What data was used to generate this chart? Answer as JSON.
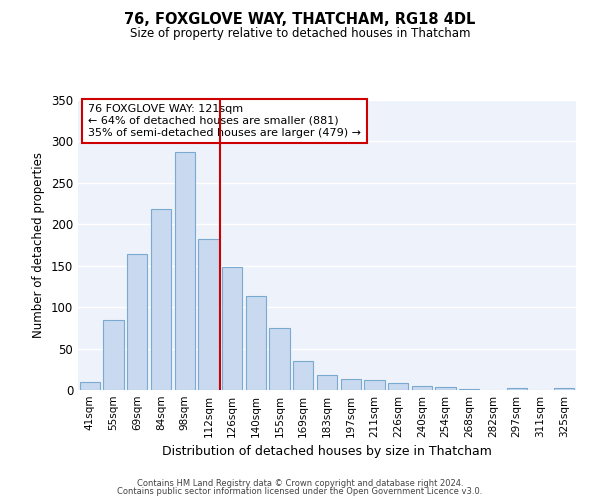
{
  "title": "76, FOXGLOVE WAY, THATCHAM, RG18 4DL",
  "subtitle": "Size of property relative to detached houses in Thatcham",
  "xlabel": "Distribution of detached houses by size in Thatcham",
  "ylabel": "Number of detached properties",
  "bar_labels": [
    "41sqm",
    "55sqm",
    "69sqm",
    "84sqm",
    "98sqm",
    "112sqm",
    "126sqm",
    "140sqm",
    "155sqm",
    "169sqm",
    "183sqm",
    "197sqm",
    "211sqm",
    "226sqm",
    "240sqm",
    "254sqm",
    "268sqm",
    "282sqm",
    "297sqm",
    "311sqm",
    "325sqm"
  ],
  "bar_values": [
    10,
    84,
    164,
    218,
    287,
    182,
    149,
    113,
    75,
    35,
    18,
    13,
    12,
    9,
    5,
    4,
    1,
    0,
    2,
    0,
    3
  ],
  "bar_color": "#c9d9f0",
  "bar_edge_color": "#7aaad0",
  "vline_x": 5.5,
  "vline_color": "#cc0000",
  "ylim": [
    0,
    350
  ],
  "yticks": [
    0,
    50,
    100,
    150,
    200,
    250,
    300,
    350
  ],
  "annotation_title": "76 FOXGLOVE WAY: 121sqm",
  "annotation_line1": "← 64% of detached houses are smaller (881)",
  "annotation_line2": "35% of semi-detached houses are larger (479) →",
  "annotation_box_color": "#ffffff",
  "annotation_box_edge": "#cc0000",
  "footer_line1": "Contains HM Land Registry data © Crown copyright and database right 2024.",
  "footer_line2": "Contains public sector information licensed under the Open Government Licence v3.0.",
  "background_color": "#eef2fb"
}
